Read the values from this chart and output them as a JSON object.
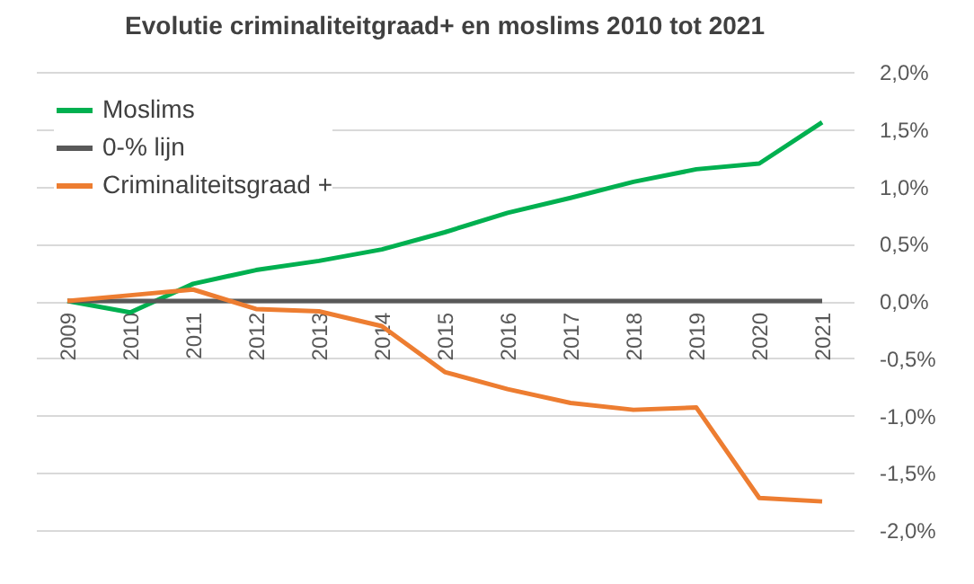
{
  "chart_data": {
    "type": "line",
    "title": "Evolutie criminaliteitgraad+  en moslims 2010 tot 2021",
    "categories": [
      "2009",
      "2010",
      "2011",
      "2012",
      "2013",
      "2014",
      "2015",
      "2016",
      "2017",
      "2018",
      "2019",
      "2020",
      "2021"
    ],
    "series": [
      {
        "name": "Moslims",
        "color": "#00b050",
        "values": [
          0,
          -0.1,
          0.15,
          0.27,
          0.35,
          0.45,
          0.6,
          0.77,
          0.9,
          1.04,
          1.15,
          1.2,
          1.56
        ]
      },
      {
        "name": "0-% lijn",
        "color": "#595959",
        "values": [
          0,
          0,
          0,
          0,
          0,
          0,
          0,
          0,
          0,
          0,
          0,
          0,
          0
        ]
      },
      {
        "name": "Criminaliteitsgraad +",
        "color": "#ed7d31",
        "values": [
          0,
          0.05,
          0.1,
          -0.07,
          -0.09,
          -0.22,
          -0.62,
          -0.77,
          -0.89,
          -0.95,
          -0.93,
          -1.72,
          -1.75
        ]
      }
    ],
    "ylim": [
      -2,
      2
    ],
    "yticks": [
      {
        "value": -2,
        "label": "-2,0%"
      },
      {
        "value": -1.5,
        "label": "-1,5%"
      },
      {
        "value": -1,
        "label": "-1,0%"
      },
      {
        "value": -0.5,
        "label": "-0,5%"
      },
      {
        "value": 0,
        "label": "0,0%"
      },
      {
        "value": 0.5,
        "label": "0,5%"
      },
      {
        "value": 1,
        "label": "1,0%"
      },
      {
        "value": 1.5,
        "label": "1,5%"
      },
      {
        "value": 2,
        "label": "2,0%"
      }
    ],
    "grid": "y",
    "legend": "top left",
    "marker": "none",
    "line_style": "solid"
  }
}
